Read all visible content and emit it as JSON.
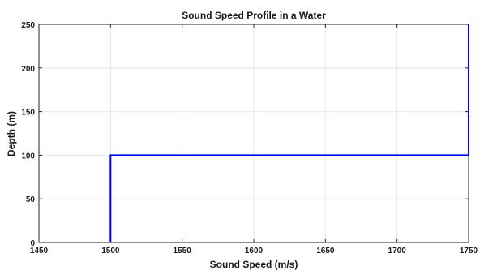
{
  "chart_data": {
    "type": "line",
    "title": "Sound Speed Profile in a Water",
    "xlabel": "Sound Speed (m/s)",
    "ylabel": "Depth (m)",
    "xlim": [
      1450,
      1750
    ],
    "ylim": [
      0,
      250
    ],
    "x_ticks": [
      1450,
      1500,
      1550,
      1600,
      1650,
      1700,
      1750
    ],
    "y_ticks": [
      0,
      50,
      100,
      150,
      200,
      250
    ],
    "grid": true,
    "series": [
      {
        "x": [
          1500,
          1500,
          1750,
          1750
        ],
        "y": [
          0,
          100,
          100,
          250
        ],
        "color": "#0000ff"
      }
    ]
  }
}
